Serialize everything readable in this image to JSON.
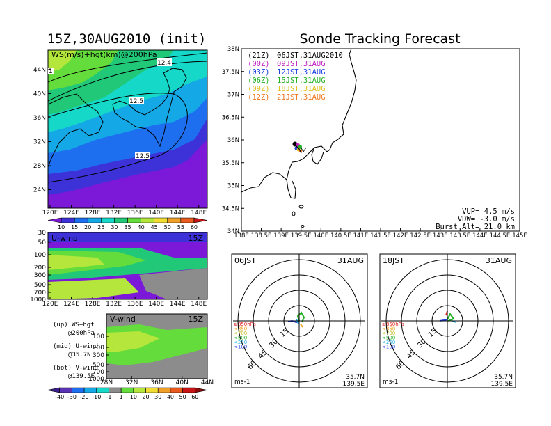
{
  "left_title": "15Z,30AUG2010 (init)",
  "right_title": "Sonde Tracking Forecast",
  "ws_panel": {
    "label": "WS(m/s)+hgt(km)@200hPa",
    "lon_ticks": [
      "120E",
      "124E",
      "128E",
      "132E",
      "136E",
      "140E",
      "144E",
      "148E"
    ],
    "lat_ticks": [
      "44N",
      "40N",
      "36N",
      "32N",
      "28N",
      "24N"
    ],
    "contour_labels": [
      "12.4",
      "12.5",
      "12.5",
      "1"
    ],
    "colorbar": {
      "levels": [
        "10",
        "15",
        "20",
        "25",
        "30",
        "35",
        "40",
        "45",
        "50",
        "55",
        "60"
      ],
      "colors": [
        "#7c18d8",
        "#3c32d8",
        "#1e6ef0",
        "#14a8e6",
        "#16d8c8",
        "#20c878",
        "#64dc3c",
        "#b4e63c",
        "#f0dc32",
        "#f0a028",
        "#e85a1e",
        "#c81414"
      ]
    }
  },
  "u_panel": {
    "label": "U-wind",
    "time": "15Z",
    "p_ticks": [
      "30",
      "50",
      "100",
      "200",
      "300",
      "500",
      "700",
      "1000"
    ],
    "lon_ticks": [
      "120E",
      "124E",
      "128E",
      "132E",
      "136E",
      "140E",
      "144E",
      "148E"
    ]
  },
  "v_panel": {
    "label": "V-wind",
    "time": "15Z",
    "p_ticks": [
      "100",
      "200",
      "300",
      "500",
      "700",
      "1000"
    ],
    "lat_ticks": [
      "28N",
      "32N",
      "36N",
      "40N",
      "44N"
    ]
  },
  "legend_notes": [
    {
      "a": "(up) WS+hgt",
      "b": "@200hPa"
    },
    {
      "a": "(mid) U-wind",
      "b": "@35.7N"
    },
    {
      "a": "(bot) V-wind",
      "b": "@139.5E"
    }
  ],
  "bottom_colorbar": {
    "levels": [
      "-40",
      "-30",
      "-20",
      "-10",
      "-1",
      "1",
      "10",
      "20",
      "30",
      "40",
      "50",
      "60"
    ],
    "colors": [
      "#3c1e8c",
      "#5a32b4",
      "#1e6ef0",
      "#14a8e6",
      "#16d8c8",
      "#8c8c8c",
      "#64dc3c",
      "#b4e63c",
      "#f0dc32",
      "#f0a028",
      "#e85a1e",
      "#c81414",
      "#8c0a0a"
    ]
  },
  "tracking_map": {
    "lat_ticks": [
      "38N",
      "37.5N",
      "37N",
      "36.5N",
      "36N",
      "35.5N",
      "35N",
      "34.5N",
      "34N"
    ],
    "lon_ticks": [
      "138E",
      "138.5E",
      "139E",
      "139.5E",
      "140E",
      "140.5E",
      "141E",
      "141.5E",
      "142E",
      "142.5E",
      "143E",
      "143.5E",
      "144E",
      "144.5E",
      "145E"
    ],
    "forecast_times": [
      {
        "utc": "(21Z)",
        "jst": "06JST,31AUG2010",
        "color": "#000000"
      },
      {
        "utc": "(00Z)",
        "jst": "09JST,31AUG",
        "color": "#c020c0"
      },
      {
        "utc": "(03Z)",
        "jst": "12JST,31AUG",
        "color": "#2040e0"
      },
      {
        "utc": "(06Z)",
        "jst": "15JST,31AUG",
        "color": "#20b020"
      },
      {
        "utc": "(09Z)",
        "jst": "18JST,31AUG",
        "color": "#e0c020"
      },
      {
        "utc": "(12Z)",
        "jst": "21JST,31AUG",
        "color": "#f07820"
      }
    ],
    "params": [
      "VUP= 4.5 m/s",
      "VDW= -3.0 m/s",
      "Burst Alt= 21.0 km"
    ]
  },
  "polar_left": {
    "time": "06JST",
    "date": "31AUG",
    "ring_labels": [
      "15",
      "30",
      "45",
      "60"
    ],
    "pressure_legend": [
      {
        "text": "≥850hPa",
        "color": "#e02020"
      },
      {
        "text": "<850",
        "color": "#f0a020"
      },
      {
        "text": "<700",
        "color": "#c0c020"
      },
      {
        "text": "<500",
        "color": "#20b020"
      },
      {
        "text": "<250",
        "color": "#20b0e0"
      },
      {
        "text": "<100",
        "color": "#2040e0"
      }
    ],
    "unit": "ms-1",
    "lat": "35.7N",
    "lon": "139.5E"
  },
  "polar_right": {
    "time": "18JST",
    "date": "31AUG",
    "ring_labels": [
      "15",
      "30",
      "45",
      "60"
    ],
    "pressure_legend": [
      {
        "text": "≥850hPa",
        "color": "#e02020"
      },
      {
        "text": "<850",
        "color": "#f0a020"
      },
      {
        "text": "<700",
        "color": "#c0c020"
      },
      {
        "text": "<500",
        "color": "#20b020"
      },
      {
        "text": "<250",
        "color": "#20b0e0"
      },
      {
        "text": "<100",
        "color": "#2040e0"
      }
    ],
    "unit": "ms-1",
    "lat": "35.7N",
    "lon": "139.5E"
  }
}
